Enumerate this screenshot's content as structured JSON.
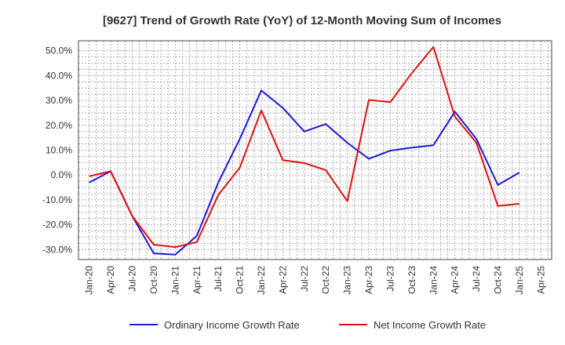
{
  "chart_data": {
    "type": "line",
    "title": "[9627]  Trend of Growth Rate (YoY) of 12-Month Moving Sum of Incomes",
    "xlabel": "",
    "ylabel": "",
    "ylim": [
      -0.34,
      0.54
    ],
    "y_ticks": [
      0.5,
      0.4,
      0.3,
      0.2,
      0.1,
      0.0,
      -0.1,
      -0.2,
      -0.3
    ],
    "y_tick_labels": [
      "50.0%",
      "40.0%",
      "30.0%",
      "20.0%",
      "10.0%",
      "0.0%",
      "-10.0%",
      "-20.0%",
      "-30.0%"
    ],
    "x_ticks": [
      "Jan-20",
      "Apr-20",
      "Jul-20",
      "Oct-20",
      "Jan-21",
      "Apr-21",
      "Jul-21",
      "Oct-21",
      "Jan-22",
      "Apr-22",
      "Jul-22",
      "Oct-22",
      "Jan-23",
      "Apr-23",
      "Jul-23",
      "Oct-23",
      "Jan-24",
      "Apr-24",
      "Jul-24",
      "Oct-24",
      "Jan-25",
      "Apr-25"
    ],
    "grid": true,
    "legend_position": "bottom",
    "categories": [
      "Jan-20",
      "Apr-20",
      "Jul-20",
      "Oct-20",
      "Jan-21",
      "Apr-21",
      "Jul-21",
      "Oct-21",
      "Jan-22",
      "Apr-22",
      "Jul-22",
      "Oct-22",
      "Jan-23",
      "Apr-23",
      "Jul-23",
      "Oct-23",
      "Jan-24",
      "Apr-24",
      "Jul-24",
      "Oct-24",
      "Jan-25"
    ],
    "series": [
      {
        "name": "Ordinary Income Growth Rate",
        "color": "#1a1adb",
        "values": [
          -0.03,
          0.015,
          -0.165,
          -0.315,
          -0.32,
          -0.245,
          -0.03,
          0.145,
          0.34,
          0.27,
          0.175,
          0.205,
          0.13,
          0.065,
          0.098,
          0.11,
          0.12,
          0.255,
          0.145,
          -0.04,
          0.01
        ]
      },
      {
        "name": "Net Income Growth Rate",
        "color": "#e01010",
        "values": [
          -0.005,
          0.015,
          -0.165,
          -0.28,
          -0.29,
          -0.27,
          -0.08,
          0.03,
          0.26,
          0.06,
          0.048,
          0.02,
          -0.105,
          0.302,
          0.293,
          0.41,
          0.515,
          0.235,
          0.13,
          -0.125,
          -0.115
        ]
      }
    ]
  }
}
